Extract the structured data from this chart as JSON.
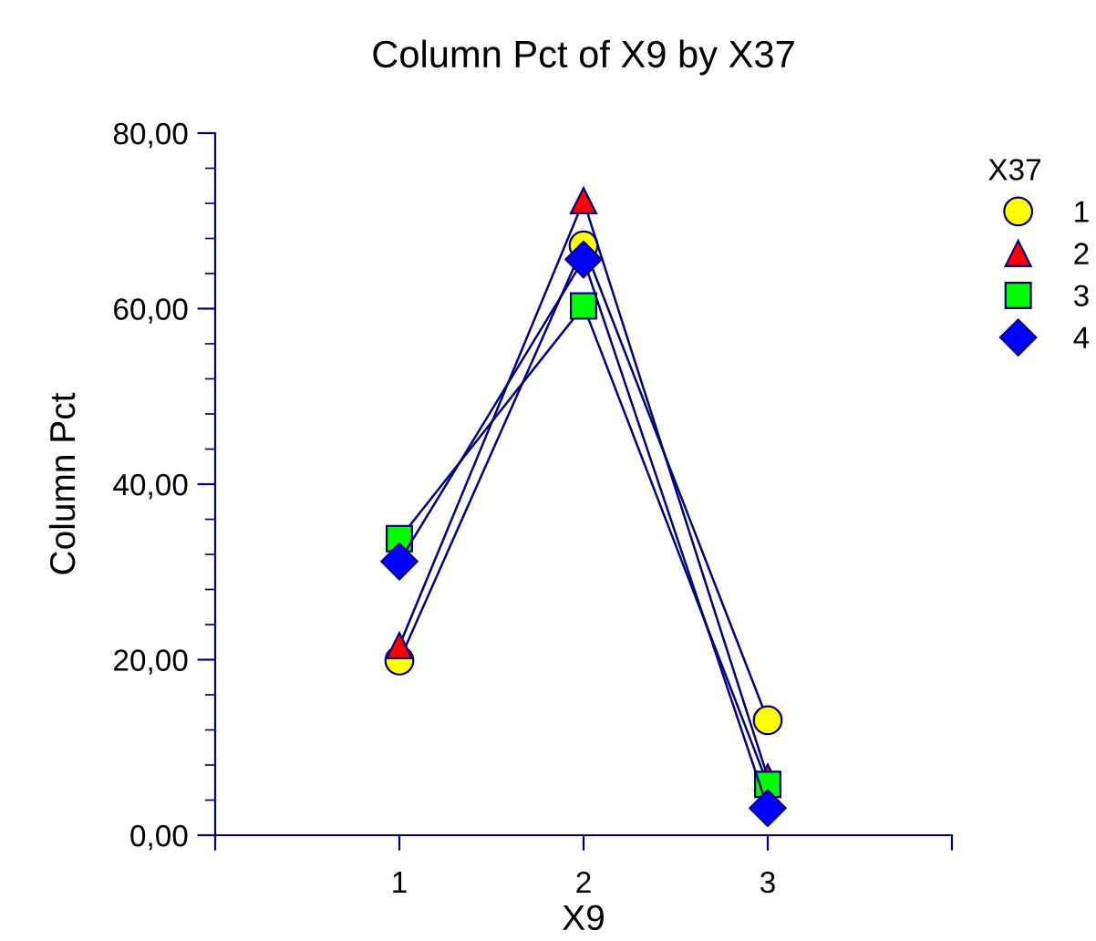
{
  "chart_data": {
    "type": "line",
    "title": "Column Pct of X9 by X37",
    "xlabel": "X9",
    "ylabel": "Column Pct",
    "legend_title": "X37",
    "legend": "top right",
    "x": [
      1,
      2,
      3
    ],
    "xlim": [
      0,
      4
    ],
    "xticks": [
      {
        "value": 0,
        "label": null
      },
      1,
      2,
      3,
      {
        "value": 4,
        "label": null
      }
    ],
    "ylim": [
      0,
      80
    ],
    "yticks": [
      {
        "value": 0,
        "label": "0,00"
      },
      {
        "value": 20,
        "label": "20,00"
      },
      {
        "value": 40,
        "label": "40,00"
      },
      {
        "value": 60,
        "label": "60,00"
      },
      {
        "value": 80,
        "label": "80,00"
      }
    ],
    "grid": false,
    "series": [
      {
        "name": "1",
        "color": "#ffff00",
        "marker": "circle",
        "values": [
          19.9,
          67.2,
          13.1
        ]
      },
      {
        "name": "2",
        "color": "#ff0000",
        "marker": "triangle",
        "values": [
          21.6,
          72.3,
          6.6
        ]
      },
      {
        "name": "3",
        "color": "#00ff00",
        "marker": "square",
        "values": [
          33.8,
          60.3,
          5.8
        ]
      },
      {
        "name": "4",
        "color": "#0000ff",
        "marker": "diamond",
        "values": [
          31.2,
          65.6,
          3.1
        ]
      }
    ]
  }
}
